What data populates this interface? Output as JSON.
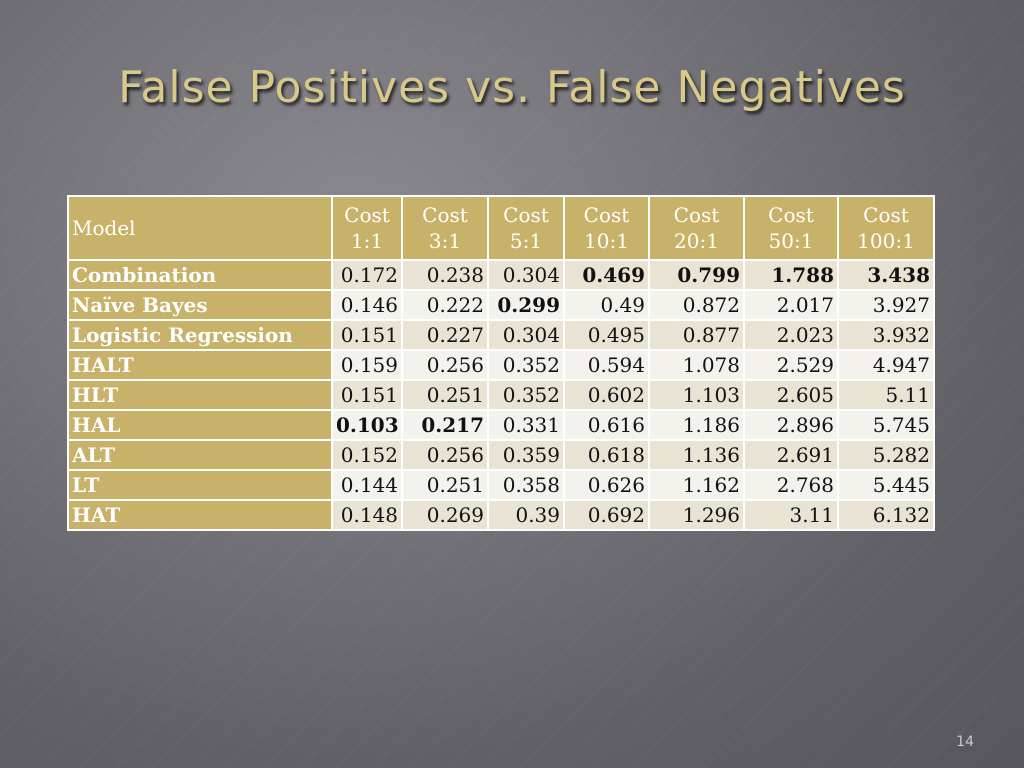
{
  "slide": {
    "title": "False Positives vs. False Negatives",
    "page_number": "14"
  },
  "table": {
    "headers": [
      "Model",
      "Cost 1:1",
      "Cost 3:1",
      "Cost 5:1",
      "Cost 10:1",
      "Cost 20:1",
      "Cost 50:1",
      "Cost 100:1"
    ],
    "rows": [
      {
        "model": "Combination",
        "values": [
          "0.172",
          "0.238",
          "0.304",
          "0.469",
          "0.799",
          "1.788",
          "3.438"
        ],
        "bold": [
          false,
          false,
          false,
          true,
          true,
          true,
          true
        ]
      },
      {
        "model": "Naïve Bayes",
        "values": [
          "0.146",
          "0.222",
          "0.299",
          "0.49",
          "0.872",
          "2.017",
          "3.927"
        ],
        "bold": [
          false,
          false,
          true,
          false,
          false,
          false,
          false
        ]
      },
      {
        "model": "Logistic Regression",
        "values": [
          "0.151",
          "0.227",
          "0.304",
          "0.495",
          "0.877",
          "2.023",
          "3.932"
        ],
        "bold": [
          false,
          false,
          false,
          false,
          false,
          false,
          false
        ]
      },
      {
        "model": "HALT",
        "values": [
          "0.159",
          "0.256",
          "0.352",
          "0.594",
          "1.078",
          "2.529",
          "4.947"
        ],
        "bold": [
          false,
          false,
          false,
          false,
          false,
          false,
          false
        ]
      },
      {
        "model": "HLT",
        "values": [
          "0.151",
          "0.251",
          "0.352",
          "0.602",
          "1.103",
          "2.605",
          "5.11"
        ],
        "bold": [
          false,
          false,
          false,
          false,
          false,
          false,
          false
        ]
      },
      {
        "model": "HAL",
        "values": [
          "0.103",
          "0.217",
          "0.331",
          "0.616",
          "1.186",
          "2.896",
          "5.745"
        ],
        "bold": [
          true,
          true,
          false,
          false,
          false,
          false,
          false
        ]
      },
      {
        "model": "ALT",
        "values": [
          "0.152",
          "0.256",
          "0.359",
          "0.618",
          "1.136",
          "2.691",
          "5.282"
        ],
        "bold": [
          false,
          false,
          false,
          false,
          false,
          false,
          false
        ]
      },
      {
        "model": "LT",
        "values": [
          "0.144",
          "0.251",
          "0.358",
          "0.626",
          "1.162",
          "2.768",
          "5.445"
        ],
        "bold": [
          false,
          false,
          false,
          false,
          false,
          false,
          false
        ]
      },
      {
        "model": "HAT",
        "values": [
          "0.148",
          "0.269",
          "0.39",
          "0.692",
          "1.296",
          "3.11",
          "6.132"
        ],
        "bold": [
          false,
          false,
          false,
          false,
          false,
          false,
          false
        ]
      }
    ]
  },
  "colors": {
    "title": "#d8c98a",
    "header_fill": "#c8b26a",
    "row_fill_odd": "#e8e3d3",
    "row_fill_even": "#f4f2ec"
  }
}
